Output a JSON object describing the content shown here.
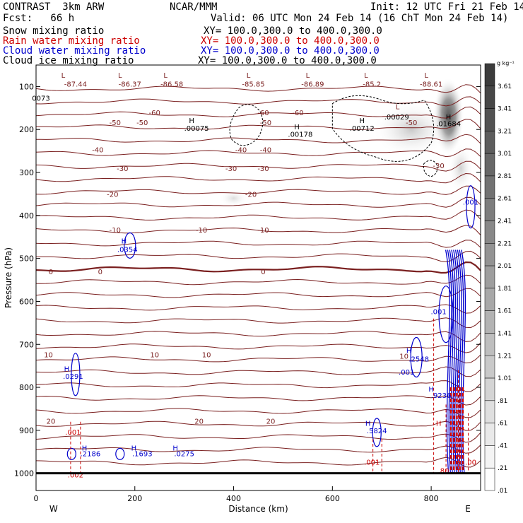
{
  "header": {
    "title": "CONTRAST  3km ARW",
    "center": "NCAR/MMM",
    "init": "Init: 12 UTC Fri 21 Feb 14",
    "fcst": "Fcst:   66 h",
    "valid": "Valid: 06 UTC Mon 24 Feb 14 (16 ChT Mon 24 Feb 14)",
    "fields": [
      {
        "name": "Snow mixing ratio",
        "xy": "XY= 100.0,300.0 to 400.0,300.0",
        "color": "#000000"
      },
      {
        "name": "Rain water mixing ratio",
        "xy": "XY= 100.0,300.0 to 400.0,300.0",
        "color": "#cc0000"
      },
      {
        "name": "Cloud water mixing ratio",
        "xy": "XY= 100.0,300.0 to 400.0,300.0",
        "color": "#0000cc"
      },
      {
        "name": "Cloud ice mixing ratio",
        "xy": "XY= 100.0,300.0 to 400.0,300.0",
        "color": "#000000"
      }
    ]
  },
  "chart_data": {
    "type": "cross-section",
    "title": "CONTRAST 3km ARW",
    "xlabel": "Distance (km)",
    "ylabel": "Pressure (hPa)",
    "xlim": [
      0,
      900
    ],
    "ylim": [
      1040,
      50
    ],
    "x_ticks": [
      0,
      200,
      400,
      600,
      800
    ],
    "y_ticks": [
      100,
      200,
      300,
      400,
      500,
      600,
      700,
      800,
      900,
      1000
    ],
    "x_end_labels": {
      "left": "W",
      "right": "E"
    },
    "colorbar": {
      "unit": "g kg⁻¹",
      "labels": [
        "3.61",
        "3.41",
        "3.21",
        "3.01",
        "2.81",
        "2.61",
        "2.41",
        "2.21",
        "2.01",
        "1.81",
        "1.61",
        "1.41",
        "1.21",
        "1.01",
        ".81",
        ".61",
        ".41",
        ".21",
        ".01"
      ]
    },
    "temperature_labels": [
      {
        "text": "-87.44",
        "x": 80,
        "p": 95
      },
      {
        "text": "-86.37",
        "x": 190,
        "p": 95
      },
      {
        "text": "-86.58",
        "x": 275,
        "p": 95
      },
      {
        "text": "-85.85",
        "x": 440,
        "p": 95
      },
      {
        "text": "-86.89",
        "x": 560,
        "p": 95
      },
      {
        "text": "-85.2",
        "x": 680,
        "p": 95
      },
      {
        "text": "-88.61",
        "x": 800,
        "p": 95
      },
      {
        "text": "-60",
        "x": 240,
        "p": 162
      },
      {
        "text": "-60",
        "x": 460,
        "p": 162
      },
      {
        "text": "-60",
        "x": 530,
        "p": 162
      },
      {
        "text": "-50",
        "x": 160,
        "p": 185
      },
      {
        "text": "-50",
        "x": 215,
        "p": 185
      },
      {
        "text": "-50",
        "x": 465,
        "p": 185
      },
      {
        "text": "-50",
        "x": 760,
        "p": 185
      },
      {
        "text": "-40",
        "x": 125,
        "p": 248
      },
      {
        "text": "-40",
        "x": 415,
        "p": 248
      },
      {
        "text": "-40",
        "x": 465,
        "p": 248
      },
      {
        "text": "-30",
        "x": 175,
        "p": 292
      },
      {
        "text": "-30",
        "x": 395,
        "p": 292
      },
      {
        "text": "-30",
        "x": 460,
        "p": 292
      },
      {
        "text": "-30",
        "x": 815,
        "p": 285
      },
      {
        "text": "-20",
        "x": 155,
        "p": 352
      },
      {
        "text": "-20",
        "x": 435,
        "p": 352
      },
      {
        "text": "-10",
        "x": 160,
        "p": 435
      },
      {
        "text": "-10",
        "x": 335,
        "p": 435
      },
      {
        "text": "-10",
        "x": 460,
        "p": 435
      },
      {
        "text": "0",
        "x": 30,
        "p": 532
      },
      {
        "text": "0",
        "x": 130,
        "p": 532
      },
      {
        "text": "0",
        "x": 460,
        "p": 532
      },
      {
        "text": "10",
        "x": 25,
        "p": 725
      },
      {
        "text": "10",
        "x": 240,
        "p": 725
      },
      {
        "text": "10",
        "x": 345,
        "p": 725
      },
      {
        "text": "10",
        "x": 745,
        "p": 728
      },
      {
        "text": "20",
        "x": 30,
        "p": 880
      },
      {
        "text": "20",
        "x": 330,
        "p": 880
      },
      {
        "text": "20",
        "x": 475,
        "p": 880
      }
    ],
    "cloud_water_labels": [
      {
        "text": ".0354",
        "x": 185,
        "p": 480
      },
      {
        "text": ".0291",
        "x": 75,
        "p": 775
      },
      {
        "text": ".2186",
        "x": 110,
        "p": 955
      },
      {
        "text": ".1693",
        "x": 215,
        "p": 955
      },
      {
        "text": ".0275",
        "x": 300,
        "p": 955
      },
      {
        "text": ".5824",
        "x": 690,
        "p": 902
      },
      {
        "text": ".2548",
        "x": 775,
        "p": 735
      },
      {
        "text": ".001",
        "x": 750,
        "p": 765
      },
      {
        "text": ".001",
        "x": 815,
        "p": 625
      },
      {
        "text": ".001",
        "x": 880,
        "p": 370
      },
      {
        "text": ".9236",
        "x": 820,
        "p": 820
      }
    ],
    "rain_labels": [
      {
        "text": ".001",
        "x": 75,
        "p": 905
      },
      {
        "text": ".002",
        "x": 80,
        "p": 1005
      },
      {
        "text": ".001",
        "x": 680,
        "p": 975
      },
      {
        "text": ".80",
        "x": 825,
        "p": 995
      },
      {
        "text": ".00",
        "x": 880,
        "p": 975
      }
    ],
    "ice_labels": [
      {
        "text": "0073",
        "x": 10,
        "p": 128
      },
      {
        "text": ".00075",
        "x": 325,
        "p": 198
      },
      {
        "text": ".00178",
        "x": 535,
        "p": 212
      },
      {
        "text": ".00712",
        "x": 660,
        "p": 198
      },
      {
        "text": ".00029",
        "x": 730,
        "p": 172
      },
      {
        "text": ".01684",
        "x": 835,
        "p": 187
      }
    ],
    "h_markers": [
      {
        "x": 315,
        "p": 180,
        "color": "#000"
      },
      {
        "x": 528,
        "p": 195,
        "color": "#000"
      },
      {
        "x": 660,
        "p": 180,
        "color": "#000"
      },
      {
        "x": 835,
        "p": 172,
        "color": "#000"
      },
      {
        "x": 178,
        "p": 460,
        "color": "#0000cc"
      },
      {
        "x": 62,
        "p": 758,
        "color": "#0000cc"
      },
      {
        "x": 98,
        "p": 942,
        "color": "#0000cc"
      },
      {
        "x": 198,
        "p": 942,
        "color": "#0000cc"
      },
      {
        "x": 282,
        "p": 942,
        "color": "#0000cc"
      },
      {
        "x": 672,
        "p": 885,
        "color": "#0000cc"
      },
      {
        "x": 755,
        "p": 715,
        "color": "#0000cc"
      },
      {
        "x": 800,
        "p": 805,
        "color": "#0000cc"
      },
      {
        "x": 815,
        "p": 885,
        "color": "#cc0000"
      }
    ],
    "l_markers": [
      {
        "x": 55,
        "p": 75
      },
      {
        "x": 170,
        "p": 75
      },
      {
        "x": 262,
        "p": 75
      },
      {
        "x": 430,
        "p": 75
      },
      {
        "x": 550,
        "p": 75
      },
      {
        "x": 668,
        "p": 75
      },
      {
        "x": 790,
        "p": 75
      },
      {
        "x": 732,
        "p": 148
      }
    ]
  }
}
